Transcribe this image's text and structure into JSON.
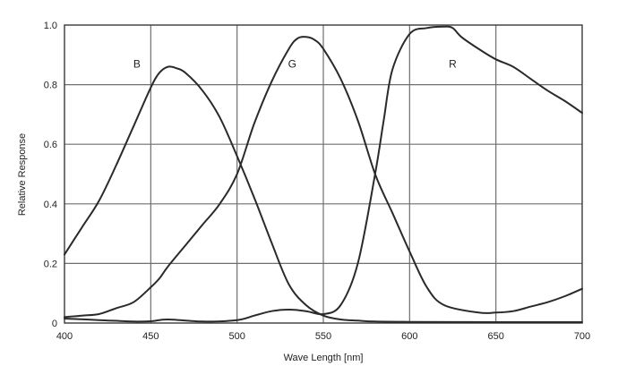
{
  "chart_data": {
    "type": "line",
    "xlabel": "Wave Length [nm]",
    "ylabel": "Relative Response",
    "xlim": [
      400,
      700
    ],
    "ylim": [
      0,
      1.0
    ],
    "x_ticks": [
      "400",
      "450",
      "500",
      "550",
      "600",
      "650",
      "700"
    ],
    "y_ticks": [
      "0",
      "0.2",
      "0.4",
      "0.6",
      "0.8",
      "1.0"
    ],
    "grid": true,
    "series": [
      {
        "name": "B",
        "label_pos": [
          442,
          0.87
        ],
        "x": [
          400,
          410,
          420,
          430,
          440,
          450,
          455,
          460,
          465,
          470,
          480,
          490,
          500,
          510,
          520,
          530,
          540,
          550,
          560,
          570,
          580,
          600,
          650,
          700
        ],
        "y": [
          0.23,
          0.32,
          0.41,
          0.53,
          0.66,
          0.79,
          0.84,
          0.86,
          0.855,
          0.84,
          0.78,
          0.69,
          0.56,
          0.42,
          0.27,
          0.13,
          0.06,
          0.025,
          0.012,
          0.008,
          0.005,
          0.004,
          0.003,
          0.003
        ]
      },
      {
        "name": "G",
        "label_pos": [
          532,
          0.87
        ],
        "x": [
          400,
          410,
          420,
          430,
          440,
          450,
          455,
          460,
          470,
          480,
          490,
          500,
          510,
          520,
          530,
          535,
          540,
          545,
          550,
          560,
          570,
          580,
          590,
          600,
          610,
          620,
          640,
          650,
          660,
          670,
          680,
          690,
          700
        ],
        "y": [
          0.02,
          0.025,
          0.03,
          0.05,
          0.07,
          0.12,
          0.15,
          0.19,
          0.26,
          0.33,
          0.4,
          0.5,
          0.67,
          0.81,
          0.92,
          0.955,
          0.96,
          0.95,
          0.92,
          0.82,
          0.68,
          0.5,
          0.37,
          0.24,
          0.12,
          0.06,
          0.035,
          0.035,
          0.04,
          0.055,
          0.07,
          0.09,
          0.115
        ]
      },
      {
        "name": "R",
        "label_pos": [
          625,
          0.87
        ],
        "x": [
          400,
          420,
          440,
          450,
          460,
          480,
          500,
          510,
          520,
          530,
          540,
          550,
          560,
          570,
          580,
          585,
          590,
          600,
          610,
          620,
          625,
          630,
          640,
          650,
          660,
          670,
          680,
          690,
          700
        ],
        "y": [
          0.015,
          0.01,
          0.005,
          0.006,
          0.012,
          0.005,
          0.01,
          0.025,
          0.04,
          0.045,
          0.04,
          0.03,
          0.06,
          0.2,
          0.5,
          0.68,
          0.85,
          0.97,
          0.99,
          0.995,
          0.99,
          0.96,
          0.92,
          0.885,
          0.86,
          0.82,
          0.78,
          0.745,
          0.705
        ]
      }
    ]
  }
}
